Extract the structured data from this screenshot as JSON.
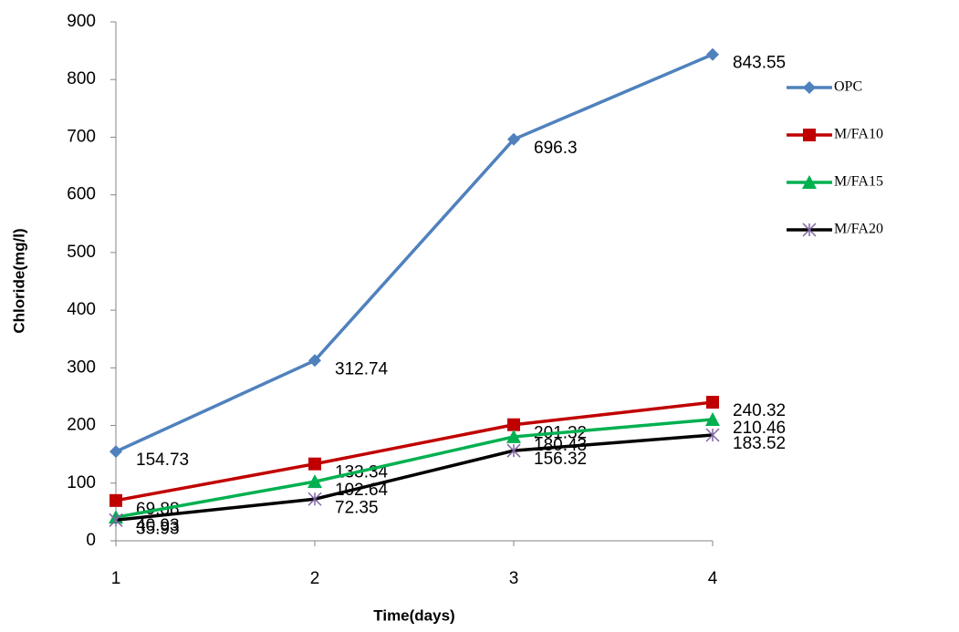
{
  "chart_data": {
    "type": "line",
    "x_label": "Time(days)",
    "y_label": "Chloride(mg/l)",
    "x": [
      1,
      2,
      3,
      4
    ],
    "xlim": [
      1,
      4
    ],
    "xticks": [
      1,
      2,
      3,
      4
    ],
    "ylim": [
      0,
      900
    ],
    "yticks": [
      0,
      100,
      200,
      300,
      400,
      500,
      600,
      700,
      800,
      900
    ],
    "grid": false,
    "legend": "right",
    "series": [
      {
        "name": "OPC",
        "color": "#4f81bd",
        "marker": "diamond",
        "marker_color": "#4f81bd",
        "values": [
          154.73,
          312.74,
          696.3,
          843.55
        ]
      },
      {
        "name": "M/FA10",
        "color": "#c00000",
        "marker": "square",
        "marker_color": "#c00000",
        "values": [
          69.88,
          133.34,
          201.32,
          240.32
        ]
      },
      {
        "name": "M/FA15",
        "color": "#00b050",
        "marker": "triangle",
        "marker_color": "#00b050",
        "values": [
          40.93,
          102.64,
          180.43,
          210.46
        ]
      },
      {
        "name": "M/FA20",
        "color": "#000000",
        "marker": "star",
        "marker_color": "#8064a2",
        "values": [
          35.93,
          72.35,
          156.32,
          183.52
        ]
      }
    ]
  }
}
